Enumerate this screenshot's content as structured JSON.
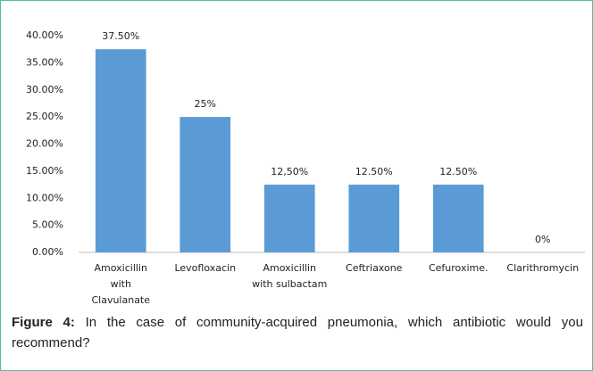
{
  "chart_data": {
    "type": "bar",
    "categories": [
      "Amoxicillin\nwith\nClavulanate",
      "Levofloxacin",
      "Amoxicillin\nwith sulbactam",
      "Ceftriaxone",
      "Cefuroxime.",
      "Clarithromycin"
    ],
    "values": [
      37.5,
      25,
      12.5,
      12.5,
      12.5,
      0
    ],
    "value_labels": [
      "37.50%",
      "25%",
      "12,50%",
      "12.50%",
      "12.50%",
      "0%"
    ],
    "color": "#5b9bd5",
    "ylim": [
      0,
      40
    ],
    "yticks": [
      {
        "value": 0,
        "label": "0.00%"
      },
      {
        "value": 5,
        "label": "5.00%"
      },
      {
        "value": 10,
        "label": "10.00%"
      },
      {
        "value": 15,
        "label": "15.00%"
      },
      {
        "value": 20,
        "label": "20.00%"
      },
      {
        "value": 25,
        "label": "25.00%"
      },
      {
        "value": 30,
        "label": "30.00%"
      },
      {
        "value": 35,
        "label": "35.00%"
      },
      {
        "value": 40,
        "label": "40.00%"
      }
    ],
    "grid": false
  },
  "caption": {
    "label": "Figure 4:",
    "text": " In the case of community-acquired pneumonia, which antibiotic would you recommend?"
  }
}
